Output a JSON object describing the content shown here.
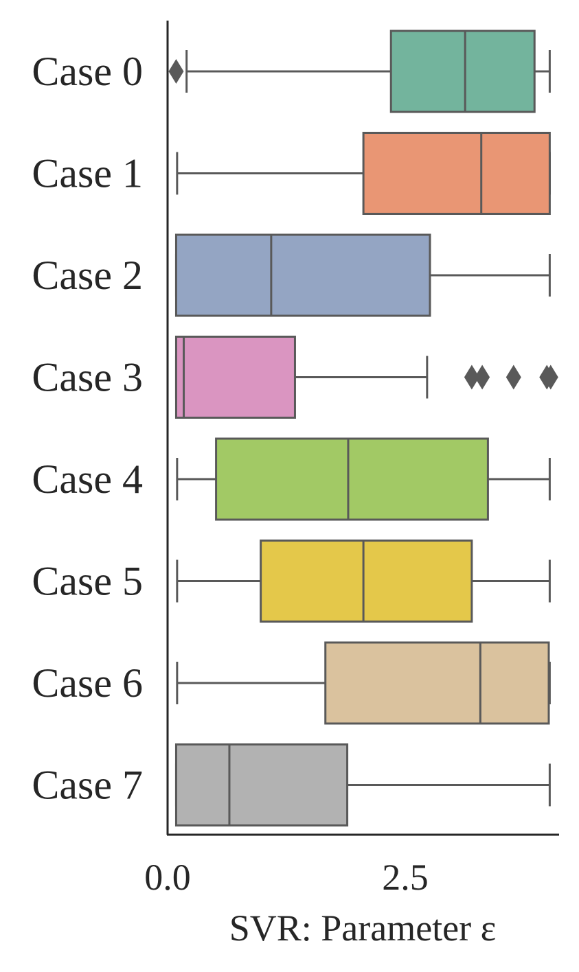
{
  "chart_data": {
    "type": "boxplot",
    "orientation": "horizontal",
    "xlabel": "SVR: Parameter ε",
    "x_ticks": [
      0.0,
      2.5
    ],
    "x_tick_labels": [
      "0.0",
      "2.5"
    ],
    "xlim": [
      0.0,
      4.2
    ],
    "grid": false,
    "legend": "none",
    "categories": [
      "Case 0",
      "Case 1",
      "Case 2",
      "Case 3",
      "Case 4",
      "Case 5",
      "Case 6",
      "Case 7"
    ],
    "boxes": [
      {
        "name": "Case 0",
        "whisker_low": 0.2,
        "q1": 2.35,
        "median": 3.13,
        "q3": 3.86,
        "whisker_high": 4.02,
        "outliers": [
          0.09
        ],
        "color": "#73b49d"
      },
      {
        "name": "Case 1",
        "whisker_low": 0.1,
        "q1": 2.06,
        "median": 3.3,
        "q3": 4.02,
        "whisker_high": 4.02,
        "outliers": [],
        "color": "#e99674"
      },
      {
        "name": "Case 2",
        "whisker_low": 0.09,
        "q1": 0.09,
        "median": 1.09,
        "q3": 2.76,
        "whisker_high": 4.02,
        "outliers": [],
        "color": "#94a5c3"
      },
      {
        "name": "Case 3",
        "whisker_low": 0.09,
        "q1": 0.09,
        "median": 0.17,
        "q3": 1.34,
        "whisker_high": 2.73,
        "outliers": [
          3.2,
          3.31,
          3.64,
          3.99,
          4.03
        ],
        "color": "#da95c1"
      },
      {
        "name": "Case 4",
        "whisker_low": 0.1,
        "q1": 0.51,
        "median": 1.9,
        "q3": 3.37,
        "whisker_high": 4.02,
        "outliers": [],
        "color": "#a2c965"
      },
      {
        "name": "Case 5",
        "whisker_low": 0.1,
        "q1": 0.98,
        "median": 2.06,
        "q3": 3.2,
        "whisker_high": 4.02,
        "outliers": [],
        "color": "#e4c84a"
      },
      {
        "name": "Case 6",
        "whisker_low": 0.1,
        "q1": 1.66,
        "median": 3.29,
        "q3": 4.01,
        "whisker_high": 4.02,
        "outliers": [],
        "color": "#dac29e"
      },
      {
        "name": "Case 7",
        "whisker_low": 0.09,
        "q1": 0.09,
        "median": 0.65,
        "q3": 1.89,
        "whisker_high": 4.02,
        "outliers": [],
        "color": "#b2b2b2"
      }
    ],
    "line_color": "#595959",
    "axis_color": "#262626"
  }
}
